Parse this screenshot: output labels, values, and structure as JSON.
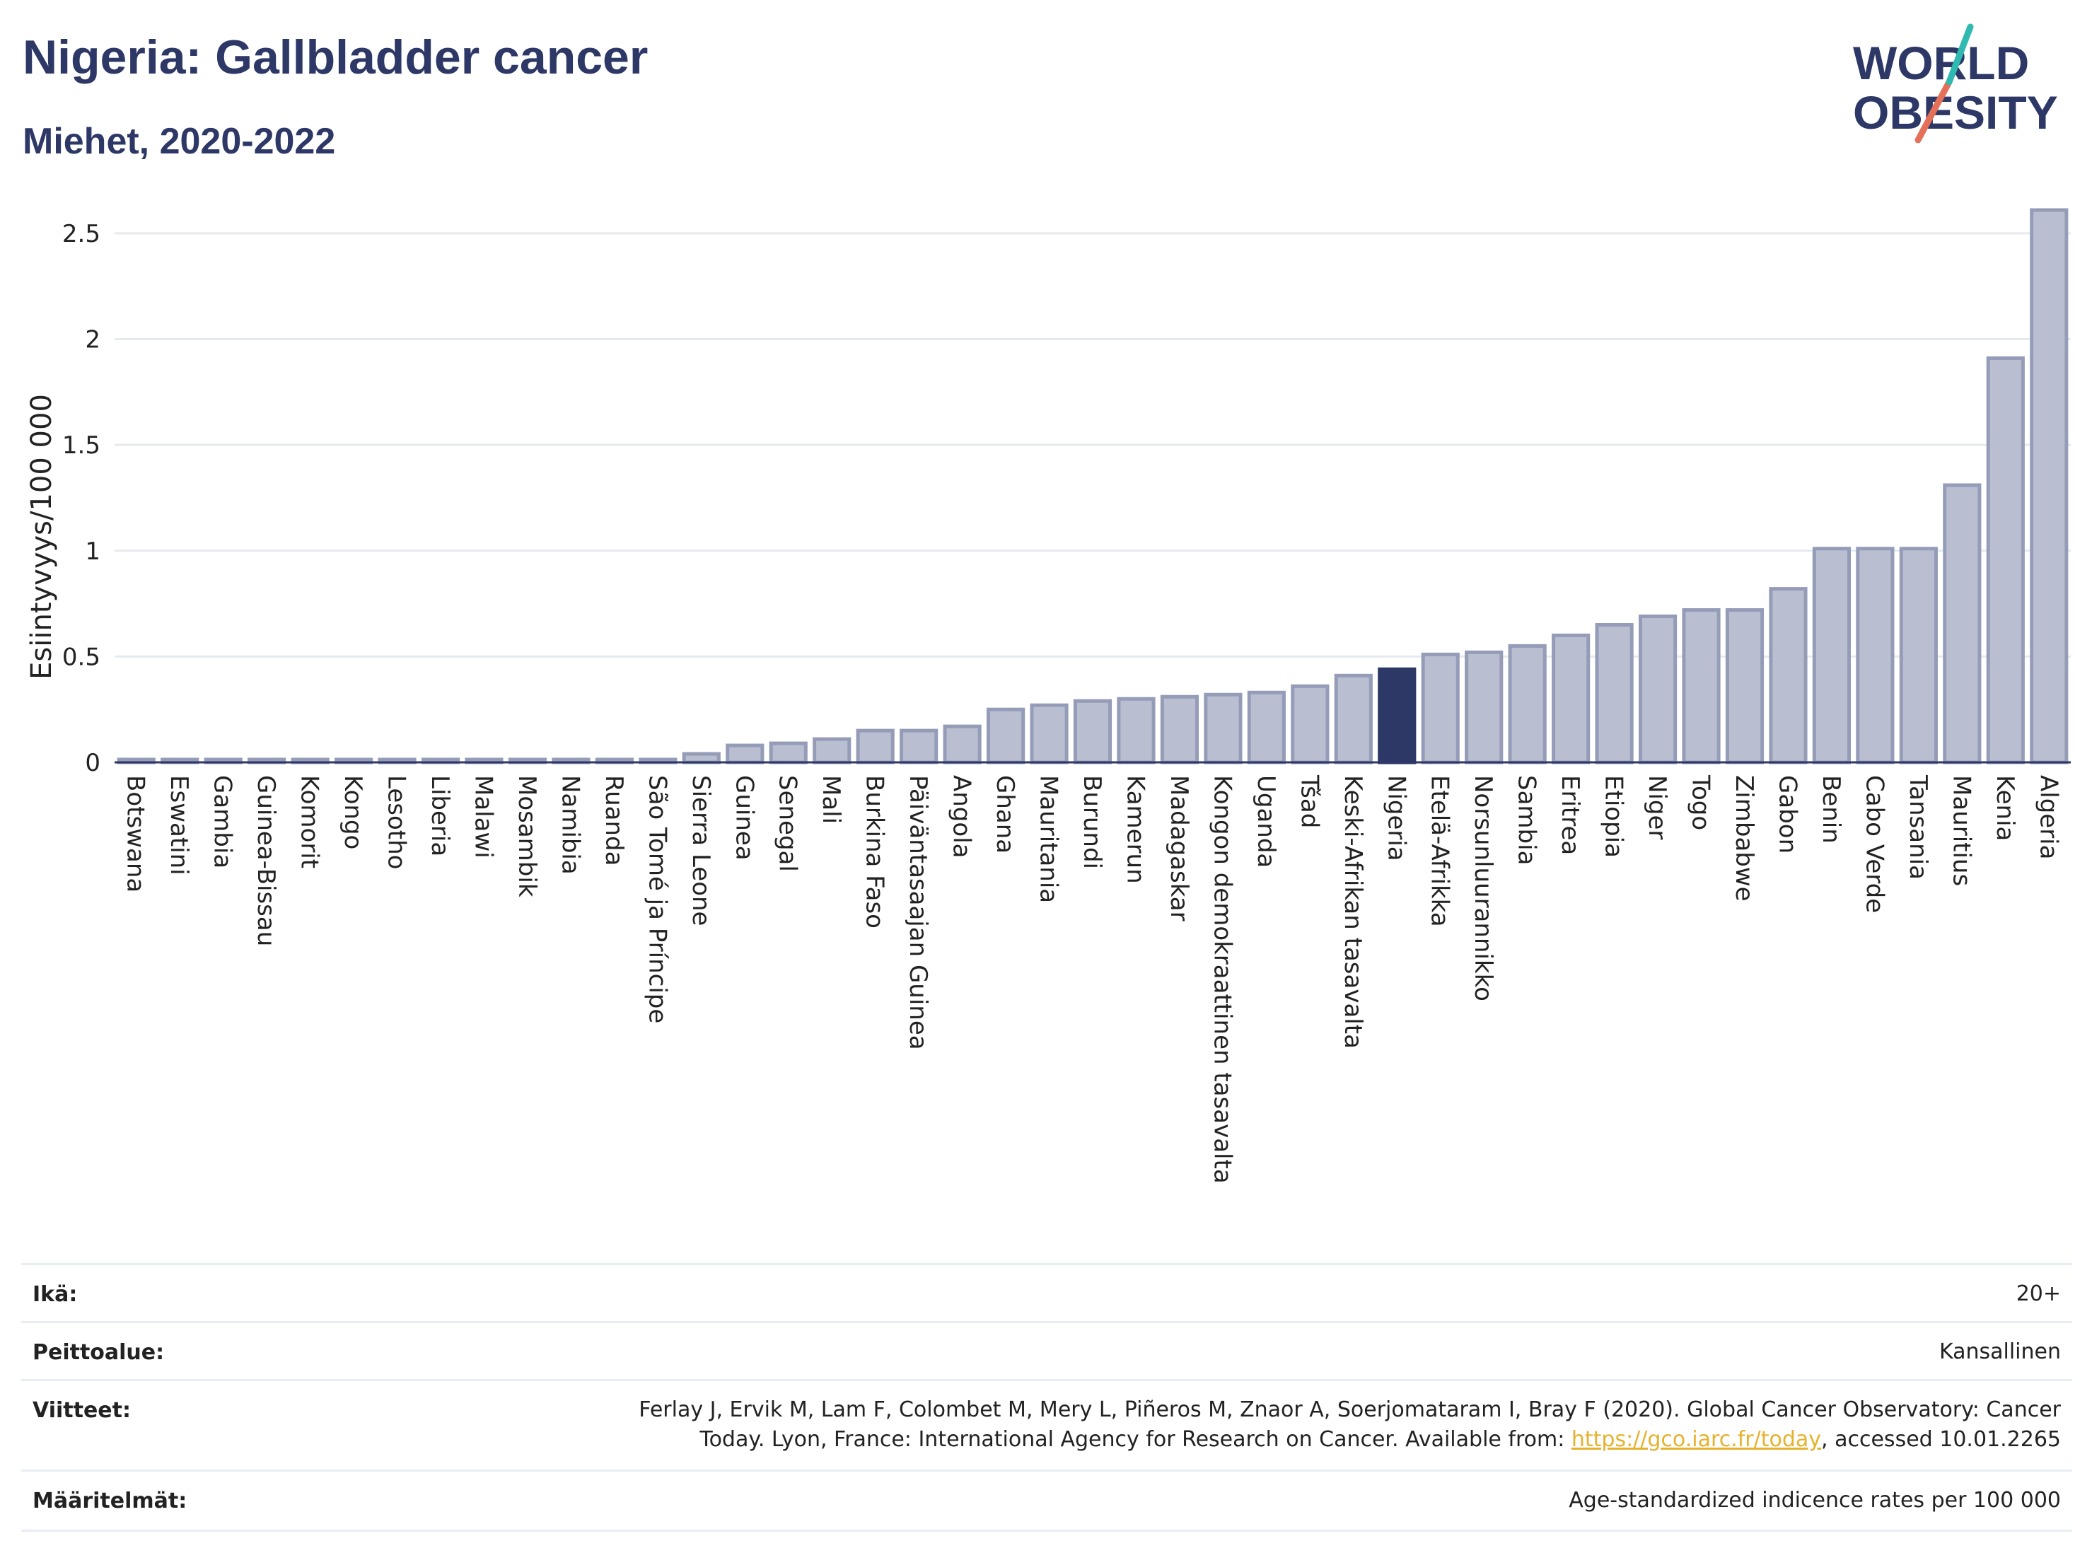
{
  "header": {
    "title": "Nigeria: Gallbladder cancer",
    "subtitle": "Miehet, 2020-2022",
    "logo_line1": "WORLD",
    "logo_line2": "OBESITY"
  },
  "chart_data": {
    "type": "bar",
    "ylabel": "Esiintyvyys/100 000",
    "xlabel": "",
    "ylim": [
      0,
      2.6
    ],
    "yticks": [
      0,
      0.5,
      1,
      1.5,
      2,
      2.5
    ],
    "ytick_labels": [
      "0",
      "0.5",
      "1",
      "1.5",
      "2",
      "2.5"
    ],
    "grid": true,
    "legend": "none",
    "highlight": "Nigeria",
    "colors": {
      "bar": "#b9bfd0",
      "bar_border": "#959cb8",
      "highlight": "#2d3866",
      "grid": "#e6e9f0",
      "axis": "#2d3866"
    },
    "categories": [
      "Botswana",
      "Eswatini",
      "Gambia",
      "Guinea-Bissau",
      "Komorit",
      "Kongo",
      "Lesotho",
      "Liberia",
      "Malawi",
      "Mosambik",
      "Namibia",
      "Ruanda",
      "São Tomé ja Príncipe",
      "Sierra Leone",
      "Guinea",
      "Senegal",
      "Mali",
      "Burkina Faso",
      "Päiväntasaajan Guinea",
      "Angola",
      "Ghana",
      "Mauritania",
      "Burundi",
      "Kamerun",
      "Madagaskar",
      "Kongon demokraattinen tasavalta",
      "Uganda",
      "Tšad",
      "Keski-Afrikan tasavalta",
      "Nigeria",
      "Etelä-Afrikka",
      "Norsunluurannikko",
      "Sambia",
      "Eritrea",
      "Etiopia",
      "Niger",
      "Togo",
      "Zimbabwe",
      "Gabon",
      "Benin",
      "Cabo Verde",
      "Tansania",
      "Mauritius",
      "Kenia",
      "Algeria"
    ],
    "values": [
      0.01,
      0.01,
      0.01,
      0.01,
      0.01,
      0.01,
      0.01,
      0.01,
      0.01,
      0.01,
      0.01,
      0.01,
      0.01,
      0.04,
      0.08,
      0.09,
      0.11,
      0.15,
      0.15,
      0.17,
      0.25,
      0.27,
      0.29,
      0.3,
      0.31,
      0.32,
      0.33,
      0.36,
      0.41,
      0.44,
      0.51,
      0.52,
      0.55,
      0.6,
      0.65,
      0.69,
      0.72,
      0.72,
      0.82,
      1.01,
      1.01,
      1.01,
      1.31,
      1.91,
      2.61
    ]
  },
  "info": {
    "age_label": "Ikä:",
    "age_value": "20+",
    "coverage_label": "Peittoalue:",
    "coverage_value": "Kansallinen",
    "refs_label": "Viitteet:",
    "refs_line1": "Ferlay J, Ervik M, Lam F, Colombet M, Mery L, Piñeros M, Znaor A, Soerjomataram I, Bray F (2020). Global Cancer Observatory: Cancer",
    "refs_line2_pre": "Today. Lyon, France: International Agency for Research on Cancer. Available from: ",
    "refs_link": "https://gco.iarc.fr/today",
    "refs_line2_post": ", accessed 10.01.2265",
    "defs_label": "Määritelmät:",
    "defs_value": "Age-standardized indicence rates per 100 000"
  }
}
